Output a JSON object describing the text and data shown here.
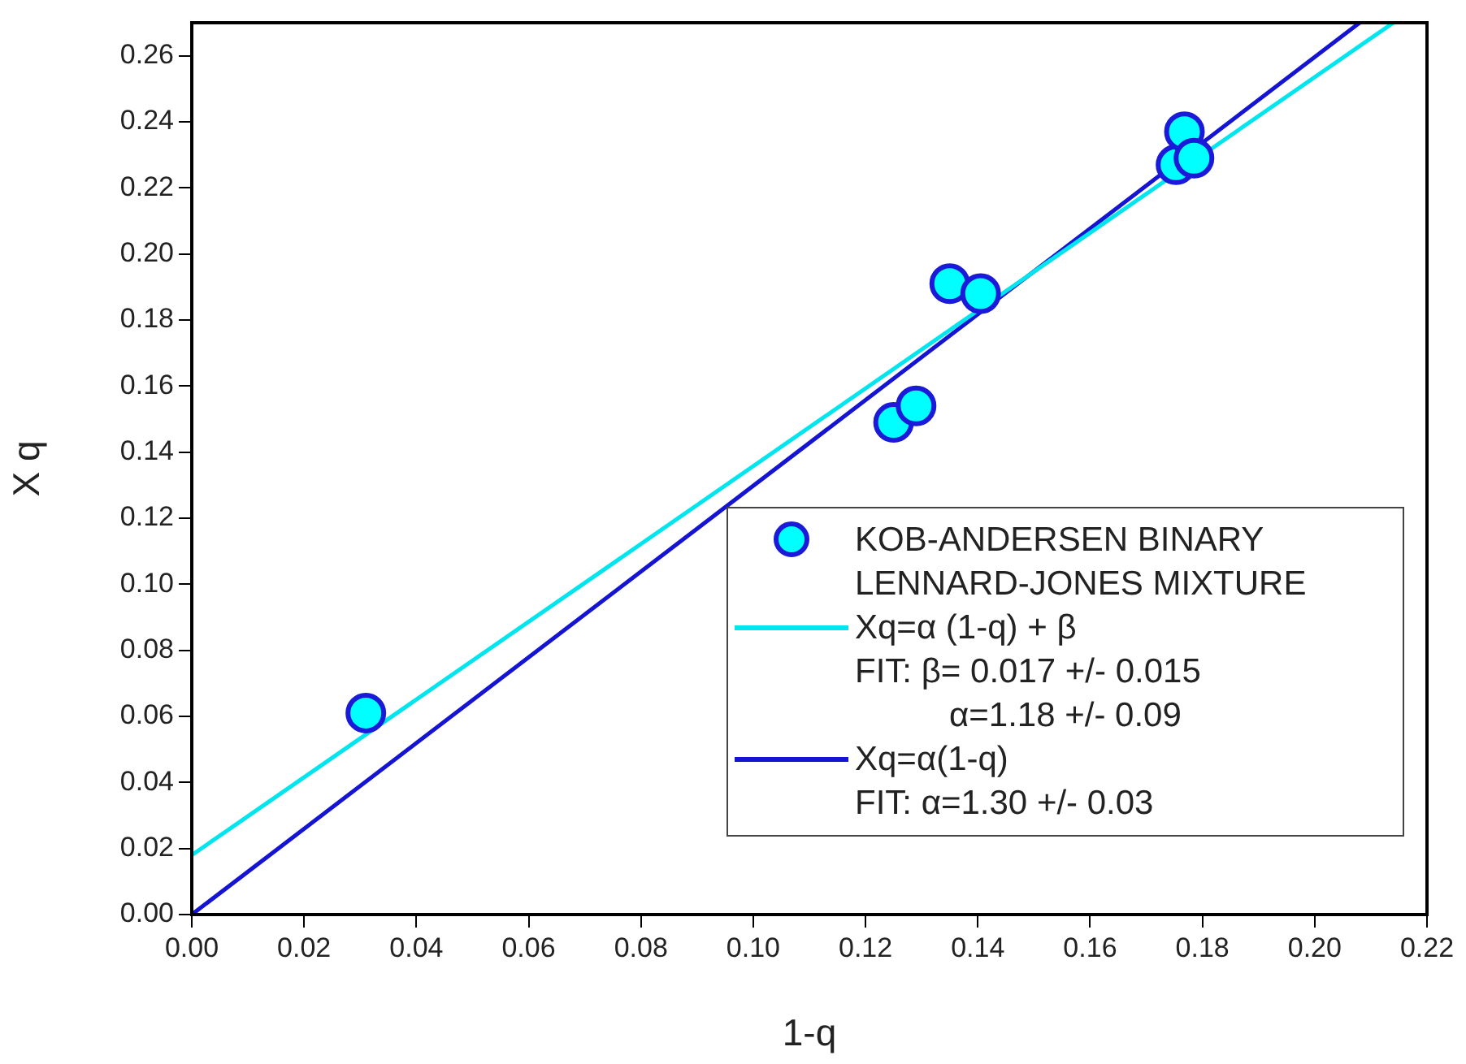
{
  "chart_data": {
    "type": "scatter",
    "xlabel": "1-q",
    "ylabel": "X q",
    "xlim": [
      0,
      0.22
    ],
    "ylim": [
      0,
      0.27
    ],
    "xticks": [
      {
        "value": 0,
        "label": "0.00"
      },
      {
        "value": 0.02,
        "label": "0.02"
      },
      {
        "value": 0.04,
        "label": "0.04"
      },
      {
        "value": 0.06,
        "label": "0.06"
      },
      {
        "value": 0.08,
        "label": "0.08"
      },
      {
        "value": 0.1,
        "label": "0.10"
      },
      {
        "value": 0.12,
        "label": "0.12"
      },
      {
        "value": 0.14,
        "label": "0.14"
      },
      {
        "value": 0.16,
        "label": "0.16"
      },
      {
        "value": 0.18,
        "label": "0.18"
      },
      {
        "value": 0.2,
        "label": "0.20"
      },
      {
        "value": 0.22,
        "label": "0.22"
      }
    ],
    "yticks": [
      {
        "value": 0,
        "label": "0.00"
      },
      {
        "value": 0.02,
        "label": "0.02"
      },
      {
        "value": 0.04,
        "label": "0.04"
      },
      {
        "value": 0.06,
        "label": "0.06"
      },
      {
        "value": 0.08,
        "label": "0.08"
      },
      {
        "value": 0.1,
        "label": "0.10"
      },
      {
        "value": 0.12,
        "label": "0.12"
      },
      {
        "value": 0.14,
        "label": "0.14"
      },
      {
        "value": 0.16,
        "label": "0.16"
      },
      {
        "value": 0.18,
        "label": "0.18"
      },
      {
        "value": 0.2,
        "label": "0.20"
      },
      {
        "value": 0.22,
        "label": "0.22"
      },
      {
        "value": 0.24,
        "label": "0.24"
      },
      {
        "value": 0.26,
        "label": "0.26"
      }
    ],
    "grid": false,
    "legend": "bottom right",
    "marker": "circle",
    "series": [
      {
        "name": "KOB-ANDERSEN BINARY LENNARD-JONES MIXTURE",
        "color": "#00ffff",
        "x": [
          0.031,
          0.125,
          0.129,
          0.135,
          0.1405,
          0.1753,
          0.1768,
          0.1785
        ],
        "values": [
          0.061,
          0.149,
          0.154,
          0.191,
          0.188,
          0.227,
          0.237,
          0.229
        ]
      },
      {
        "name": "Xq=α (1-q) + β",
        "type": "line",
        "marker": "none",
        "color": "#00e5ee",
        "x": [
          0,
          0.214
        ],
        "values": [
          0.018,
          0.27
        ]
      },
      {
        "name": "Xq=α(1-q)",
        "type": "line",
        "marker": "none",
        "color": "#1414d2",
        "x": [
          0,
          0.208
        ],
        "values": [
          0,
          0.27
        ]
      }
    ],
    "annotations": [
      "FIT: β= 0.017 +/- 0.015",
      "α=1.18 +/- 0.09",
      "FIT: α=1.30 +/- 0.03"
    ]
  }
}
